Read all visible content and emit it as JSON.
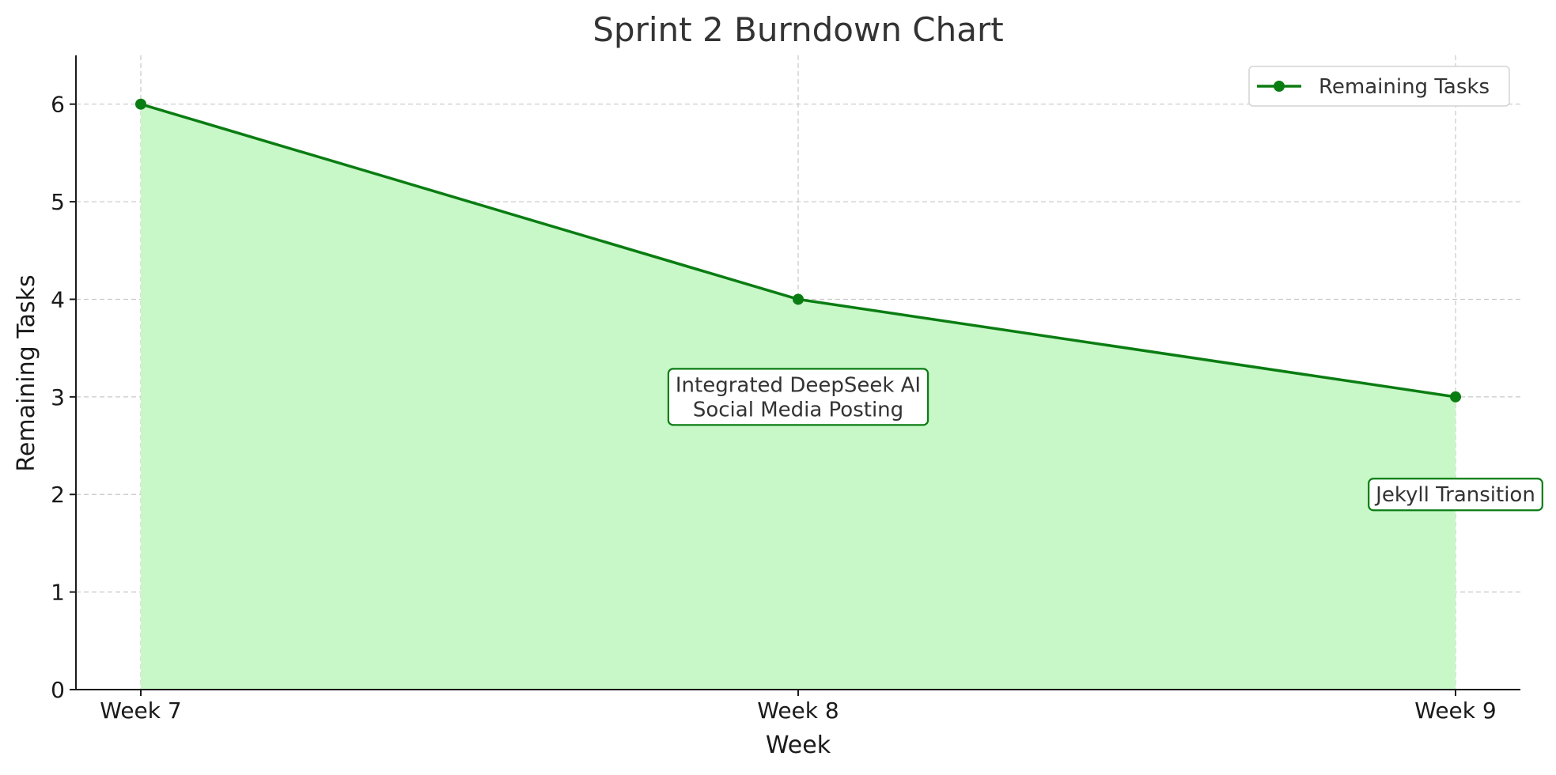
{
  "chart_data": {
    "type": "area",
    "title": "Sprint 2 Burndown Chart",
    "xlabel": "Week",
    "ylabel": "Remaining Tasks",
    "categories": [
      "Week 7",
      "Week 8",
      "Week 9"
    ],
    "series": [
      {
        "name": "Remaining Tasks",
        "values": [
          6,
          4,
          3
        ]
      }
    ],
    "ylim": [
      0,
      6.5
    ],
    "yticks": [
      0,
      1,
      2,
      3,
      4,
      5,
      6
    ],
    "grid": true,
    "legend_position": "top-right",
    "annotations": [
      {
        "category": "Week 8",
        "y": 3,
        "lines": [
          "Integrated DeepSeek AI",
          "Social Media Posting"
        ]
      },
      {
        "category": "Week 9",
        "y": 2,
        "lines": [
          "Jekyll Transition"
        ]
      }
    ],
    "colors": {
      "line": "#0a7d12",
      "fill": "#c8f7c8",
      "grid": "#c8c8c8",
      "axis": "#1a1a1a"
    }
  }
}
